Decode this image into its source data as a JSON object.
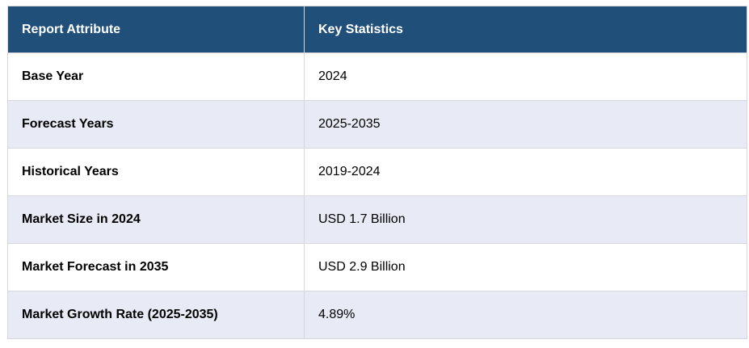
{
  "header": {
    "col1": "Report Attribute",
    "col2": "Key Statistics"
  },
  "rows": [
    {
      "attribute": "Base Year",
      "value": "2024"
    },
    {
      "attribute": "Forecast Years",
      "value": "2025-2035"
    },
    {
      "attribute": "Historical Years",
      "value": "2019-2024"
    },
    {
      "attribute": "Market Size in 2024",
      "value": "USD 1.7 Billion"
    },
    {
      "attribute": "Market Forecast in 2035",
      "value": "USD 2.9 Billion"
    },
    {
      "attribute": "Market Growth Rate (2025-2035)",
      "value": "4.89%"
    }
  ],
  "colors": {
    "header_bg": "#204f7a",
    "alt_row_bg": "#e8eaf5"
  }
}
